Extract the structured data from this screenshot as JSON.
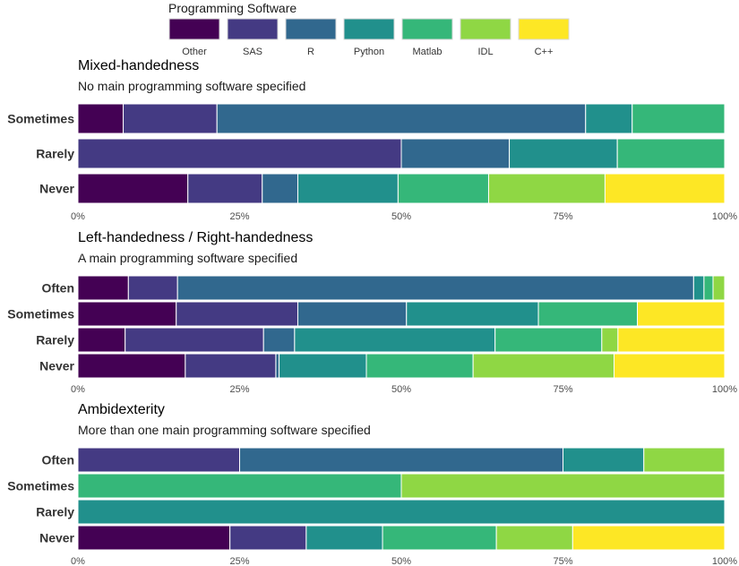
{
  "legend": {
    "title": "Programming Software",
    "items": [
      {
        "label": "Other",
        "color": "#440154"
      },
      {
        "label": "SAS",
        "color": "#443A83"
      },
      {
        "label": "R",
        "color": "#31688E"
      },
      {
        "label": "Python",
        "color": "#21908C"
      },
      {
        "label": "Matlab",
        "color": "#35B779"
      },
      {
        "label": "IDL",
        "color": "#8FD744"
      },
      {
        "label": "C++",
        "color": "#FDE725"
      }
    ]
  },
  "chart_data": [
    {
      "type": "bar",
      "orientation": "horizontal",
      "stacked": true,
      "title": "Mixed-handedness",
      "subtitle": "No main programming software specified",
      "xlim": [
        0,
        100
      ],
      "x_ticks": [
        "0%",
        "25%",
        "50%",
        "75%",
        "100%"
      ],
      "categories": [
        "Sometimes",
        "Rarely",
        "Never"
      ],
      "series": [
        {
          "name": "Other",
          "values": [
            7,
            0,
            17
          ]
        },
        {
          "name": "SAS",
          "values": [
            14.5,
            50,
            11.5
          ]
        },
        {
          "name": "R",
          "values": [
            57,
            16.7,
            5.5
          ]
        },
        {
          "name": "Python",
          "values": [
            7.2,
            16.7,
            15.5
          ]
        },
        {
          "name": "Matlab",
          "values": [
            14.3,
            16.6,
            14
          ]
        },
        {
          "name": "IDL",
          "values": [
            0,
            0,
            18
          ]
        },
        {
          "name": "C++",
          "values": [
            0,
            0,
            18.5
          ]
        }
      ]
    },
    {
      "type": "bar",
      "orientation": "horizontal",
      "stacked": true,
      "title": "Left-handedness / Right-handedness",
      "subtitle": "A main programming software specified",
      "xlim": [
        0,
        100
      ],
      "x_ticks": [
        "0%",
        "25%",
        "50%",
        "75%",
        "100%"
      ],
      "categories": [
        "Often",
        "Sometimes",
        "Rarely",
        "Never"
      ],
      "series": [
        {
          "name": "Other",
          "values": [
            7.8,
            15.2,
            7.3,
            16.6
          ]
        },
        {
          "name": "SAS",
          "values": [
            7.6,
            18.8,
            21.4,
            14
          ]
        },
        {
          "name": "R",
          "values": [
            79.8,
            16.8,
            4.8,
            0.5
          ]
        },
        {
          "name": "Python",
          "values": [
            1.6,
            20.4,
            31,
            13.5
          ]
        },
        {
          "name": "Matlab",
          "values": [
            1.4,
            15.3,
            16.5,
            16.5
          ]
        },
        {
          "name": "IDL",
          "values": [
            1.8,
            0,
            2.5,
            21.8
          ]
        },
        {
          "name": "C++",
          "values": [
            0,
            13.5,
            16.5,
            17.1
          ]
        }
      ]
    },
    {
      "type": "bar",
      "orientation": "horizontal",
      "stacked": true,
      "title": "Ambidexterity",
      "subtitle": "More than one main programming software specified",
      "xlim": [
        0,
        100
      ],
      "x_ticks": [
        "0%",
        "25%",
        "50%",
        "75%",
        "100%"
      ],
      "categories": [
        "Often",
        "Sometimes",
        "Rarely",
        "Never"
      ],
      "series": [
        {
          "name": "Other",
          "values": [
            0,
            0,
            0,
            23.5
          ]
        },
        {
          "name": "SAS",
          "values": [
            25,
            0,
            0,
            11.8
          ]
        },
        {
          "name": "R",
          "values": [
            50,
            0,
            0,
            0
          ]
        },
        {
          "name": "Python",
          "values": [
            12.5,
            0,
            100,
            11.8
          ]
        },
        {
          "name": "Matlab",
          "values": [
            0,
            50,
            0,
            17.6
          ]
        },
        {
          "name": "IDL",
          "values": [
            12.5,
            50,
            0,
            11.8
          ]
        },
        {
          "name": "C++",
          "values": [
            0,
            0,
            0,
            23.5
          ]
        }
      ]
    }
  ]
}
